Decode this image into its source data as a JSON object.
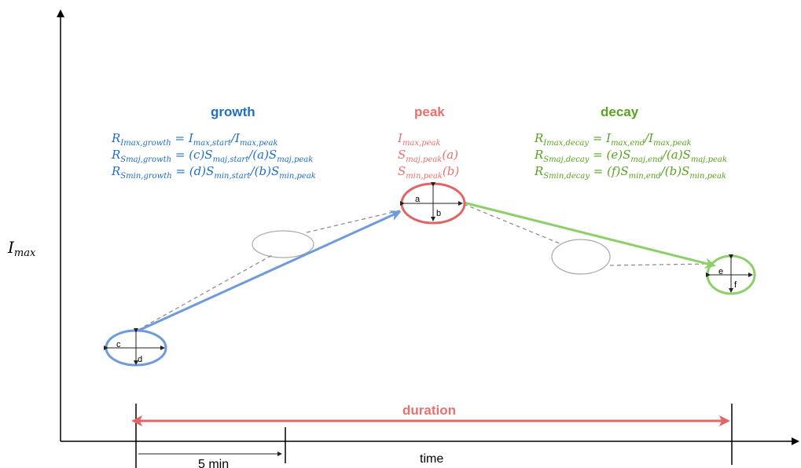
{
  "axes": {
    "y_label_main": "I",
    "y_label_sub": "max",
    "x_label": "time"
  },
  "scale": {
    "label": "5 min"
  },
  "duration": {
    "label": "duration"
  },
  "colors": {
    "growth": "#1f6fc5",
    "peak": "#e8706f",
    "decay": "#5aa321",
    "growth_ellipse": "#6f9bd9",
    "peak_ellipse": "#e06666",
    "decay_ellipse": "#8dcf6a",
    "ghost_ellipse": "#aaaaaa",
    "duration": "#e06666"
  },
  "growth": {
    "title": "growth",
    "formulas": [
      {
        "lhs": "R",
        "lhs_sub": "Imax,growth",
        "rhs": " = I",
        "rhs_sub1": "max,start",
        "mid": "/I",
        "rhs_sub2": "max,peak"
      },
      {
        "lhs": "R",
        "lhs_sub": "Smaj,growth",
        "rhs": " = (c)S",
        "rhs_sub1": "maj,start",
        "mid": "/(a)S",
        "rhs_sub2": "maj,peak"
      },
      {
        "lhs": "R",
        "lhs_sub": "Smin,growth",
        "rhs": " = (d)S",
        "rhs_sub1": "min,start",
        "mid": "/(b)S",
        "rhs_sub2": "min,peak"
      }
    ]
  },
  "peak": {
    "title": "peak",
    "formulas": [
      {
        "main": "I",
        "sub": "max,peak",
        "tail": ""
      },
      {
        "main": "S",
        "sub": "maj,peak",
        "tail": "(a)"
      },
      {
        "main": "S",
        "sub": "min,peak",
        "tail": "(b)"
      }
    ]
  },
  "decay": {
    "title": "decay",
    "formulas": [
      {
        "lhs": "R",
        "lhs_sub": "Imax,decay",
        "rhs": " = I",
        "rhs_sub1": "max,end",
        "mid": "/I",
        "rhs_sub2": "max,peak"
      },
      {
        "lhs": "R",
        "lhs_sub": "Smaj,decay",
        "rhs": " = (e)S",
        "rhs_sub1": "maj,end",
        "mid": "/(a)S",
        "rhs_sub2": "maj,peak"
      },
      {
        "lhs": "R",
        "lhs_sub": "Smin,decay",
        "rhs": " = (f)S",
        "rhs_sub1": "min,end",
        "mid": "/(b)S",
        "rhs_sub2": "min,peak"
      }
    ]
  },
  "ellipse_labels": {
    "start_major": "c",
    "start_minor": "d",
    "peak_major": "a",
    "peak_minor": "b",
    "end_major": "e",
    "end_minor": "f"
  }
}
